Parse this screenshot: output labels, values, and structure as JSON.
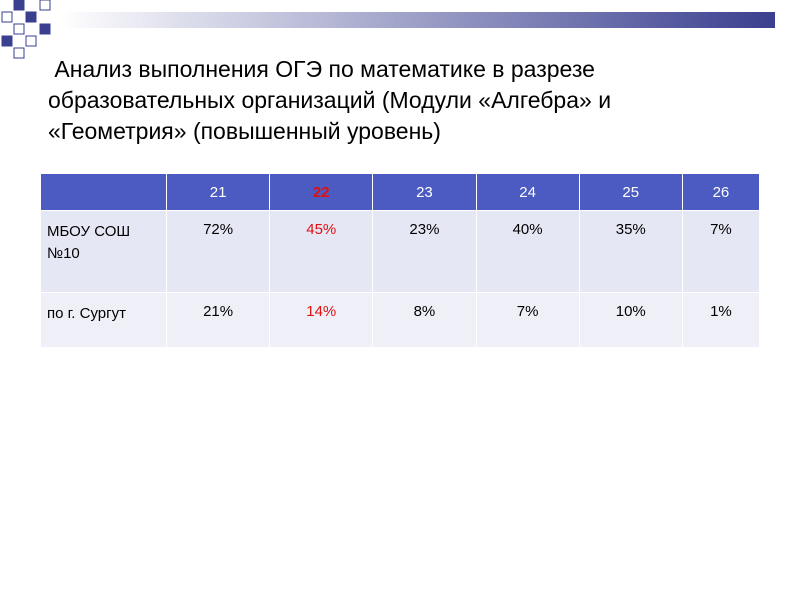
{
  "title": " Анализ выполнения ОГЭ по математике в разрезе образовательных организаций (Модули «Алгебра» и «Геометрия» (повышенный уровень)",
  "table": {
    "header": [
      "21",
      "22",
      "23",
      "24",
      "25",
      "26"
    ],
    "highlight_column": 1,
    "rows": [
      {
        "label": "МБОУ СОШ №10",
        "cells": [
          "72%",
          "45%",
          "23%",
          "40%",
          "35%",
          "7%"
        ]
      },
      {
        "label": "по г. Сургут",
        "cells": [
          "21%",
          "14%",
          "8%",
          "7%",
          "10%",
          "1%"
        ]
      }
    ]
  }
}
